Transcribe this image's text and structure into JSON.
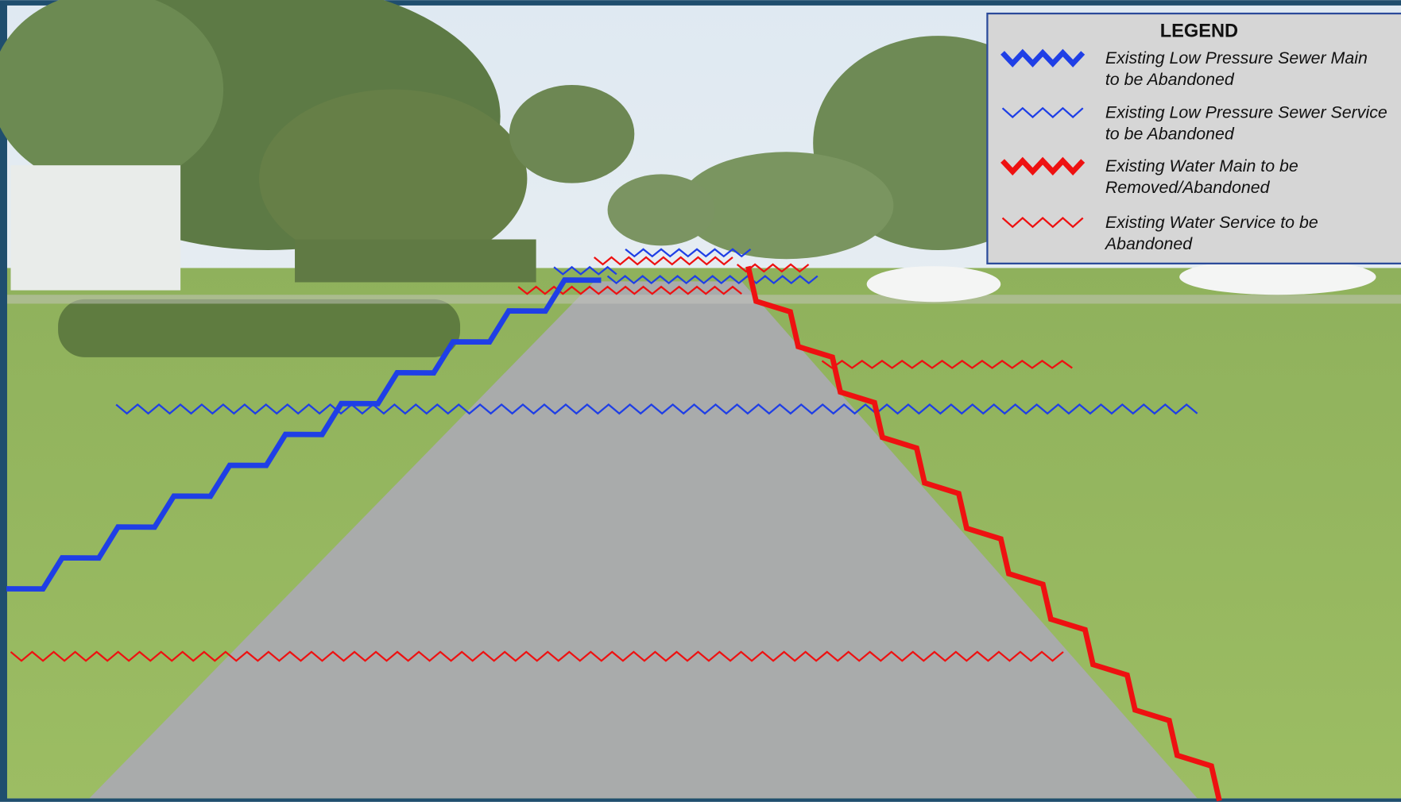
{
  "legend": {
    "title": "LEGEND",
    "items": [
      {
        "lines": [
          "Existing Low Pressure Sewer Main",
          "to be Abandoned"
        ]
      },
      {
        "lines": [
          "Existing Low Pressure Sewer Service",
          "to be Abandoned"
        ]
      },
      {
        "lines": [
          "Existing Water Main to be",
          "Removed/Abandoned"
        ]
      },
      {
        "lines": [
          "Existing Water Service to be",
          "Abandoned"
        ]
      }
    ]
  }
}
